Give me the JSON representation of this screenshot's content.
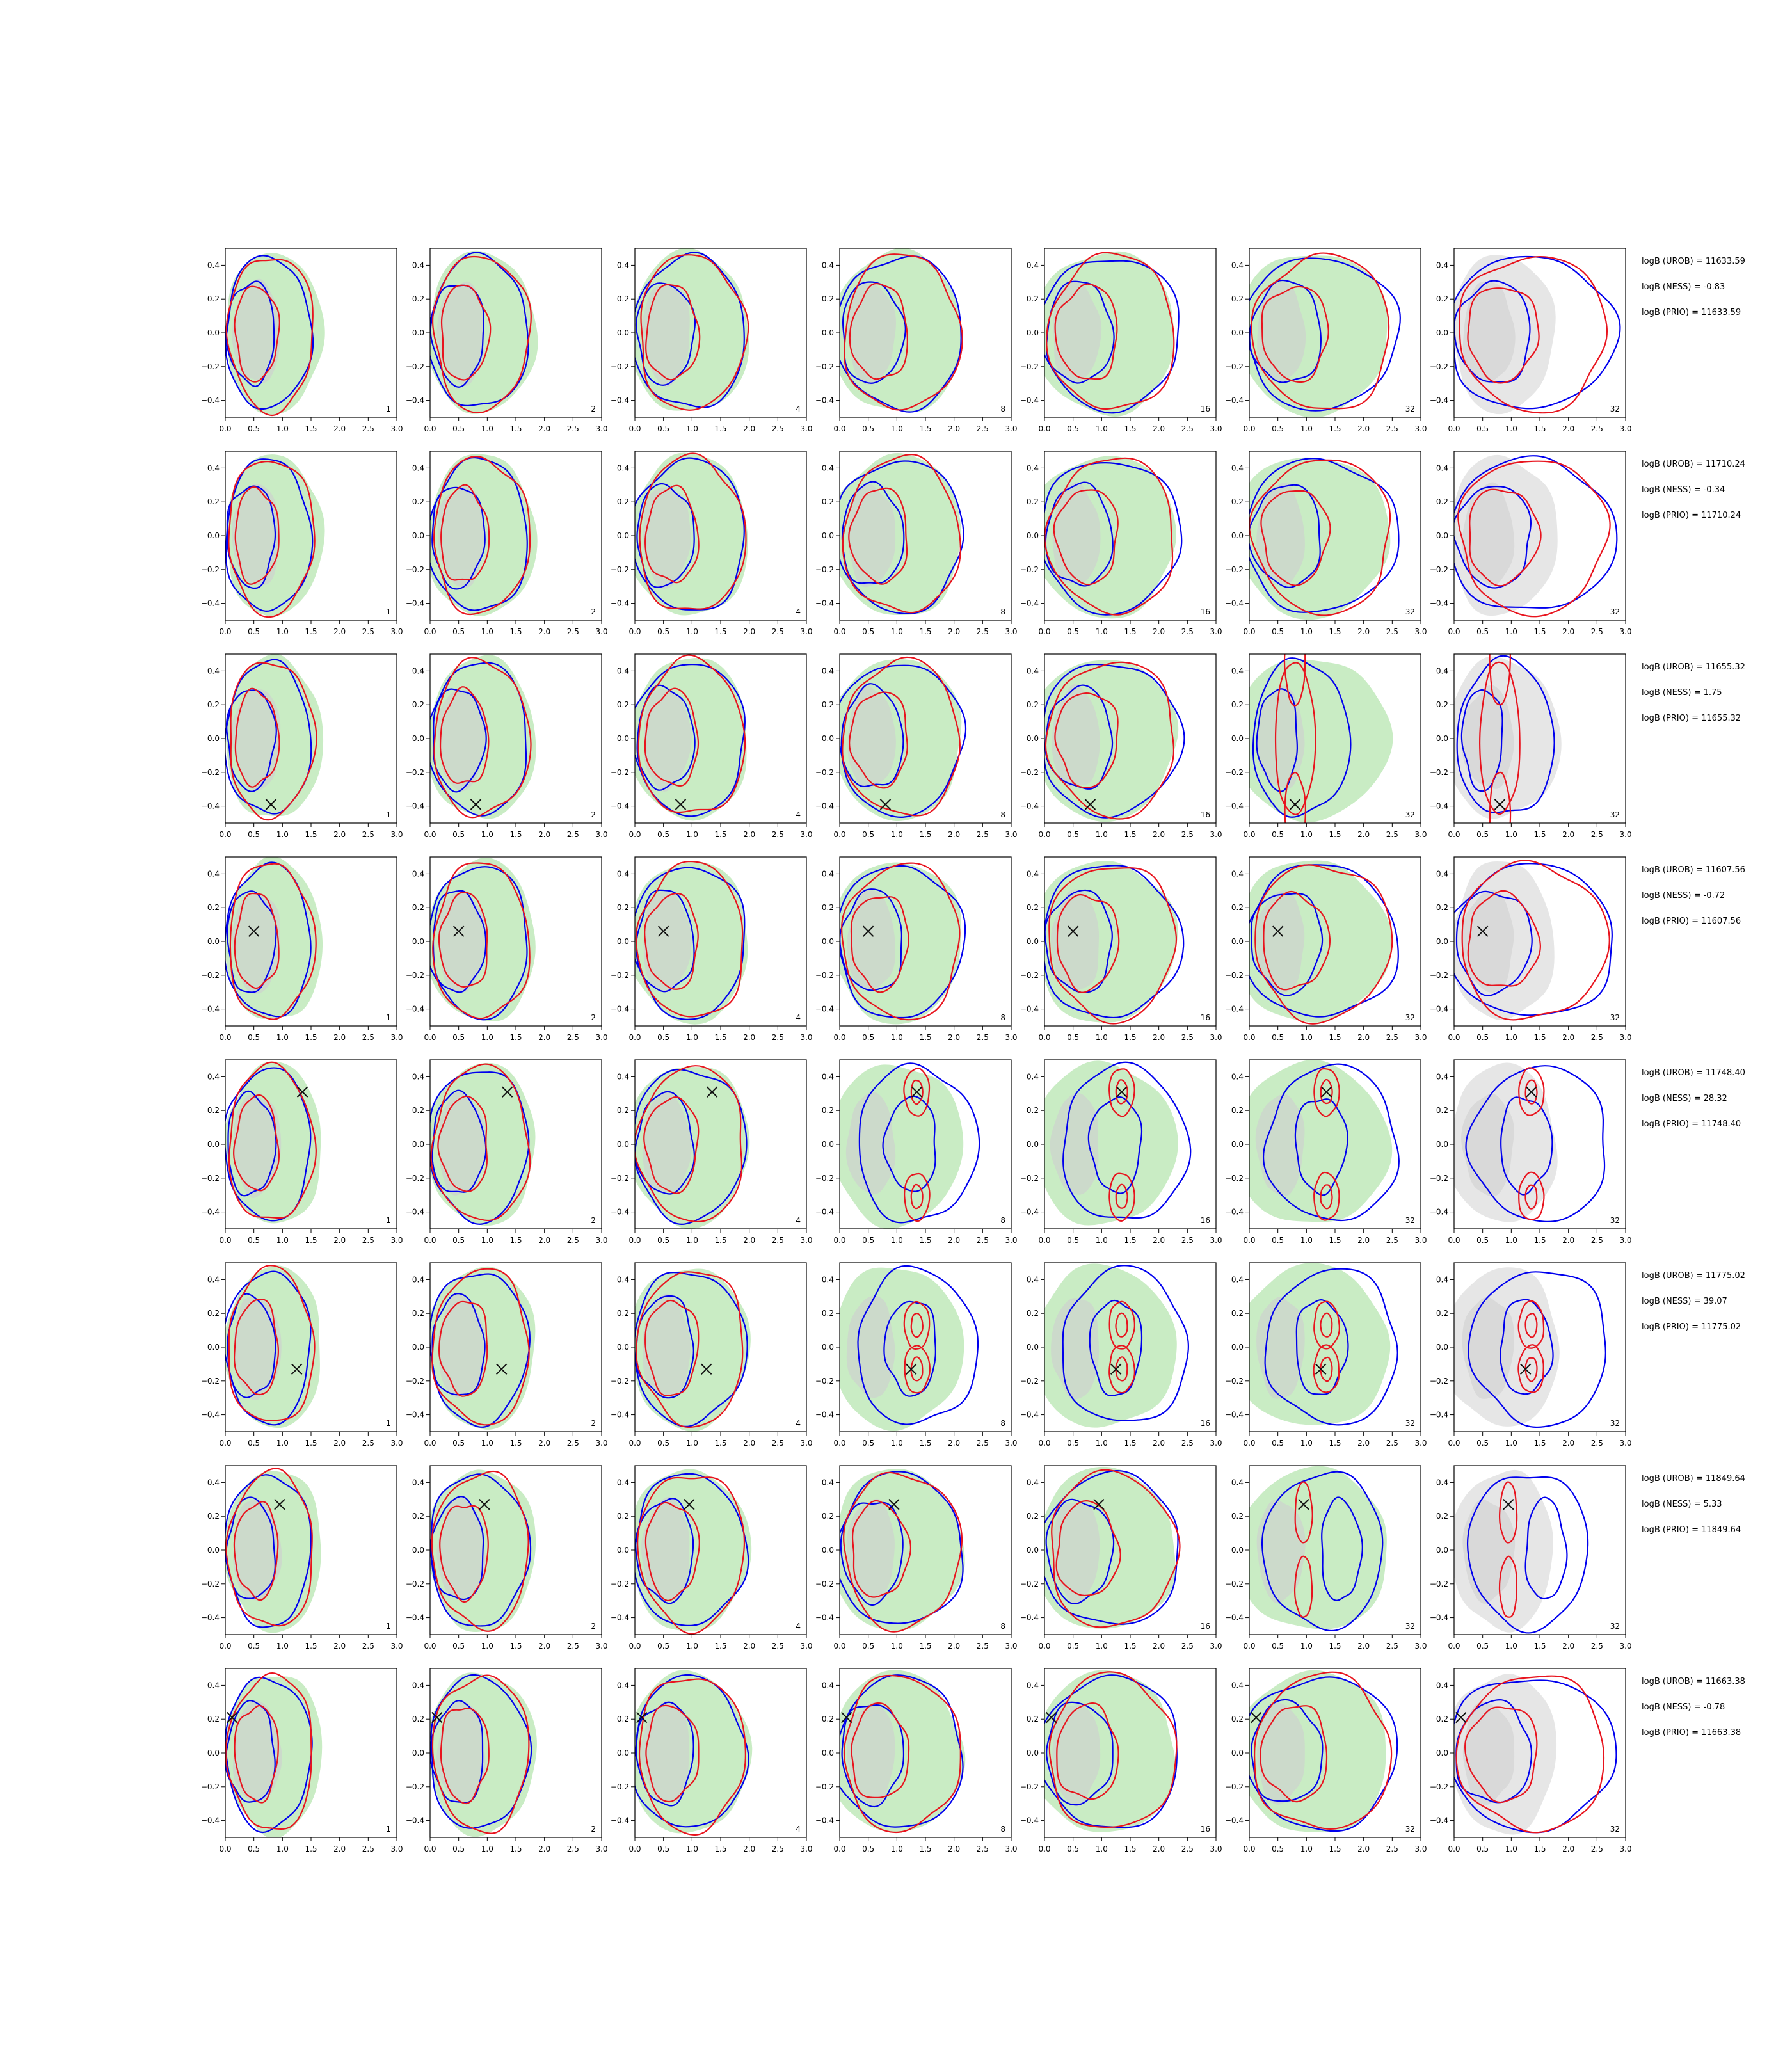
{
  "chart_data": {
    "type": "contour",
    "title": "",
    "layout": {
      "rows": 8,
      "cols": 7
    },
    "xlim": [
      0.0,
      3.0
    ],
    "ylim": [
      -0.5,
      0.5
    ],
    "xticks": [
      "0.0",
      "0.5",
      "1.0",
      "1.5",
      "2.0",
      "2.5",
      "3.0"
    ],
    "yticks": [
      "0.4",
      "0.2",
      "0.0",
      "−0.2",
      "−0.4"
    ],
    "ytick_values": [
      0.4,
      0.2,
      0.0,
      -0.2,
      -0.4
    ],
    "colors": {
      "green_fill": "#c9ecc4",
      "inner_gray": "#cdd6cd",
      "gray_fill": "#e6e6e6",
      "blue": "#0000ee",
      "red": "#e8141e",
      "marker": "#111111"
    },
    "panel_labels": [
      [
        "1",
        "2",
        "4",
        "8",
        "16",
        "32",
        "32"
      ],
      [
        "1",
        "2",
        "4",
        "8",
        "16",
        "32",
        "32"
      ],
      [
        "1",
        "2",
        "4",
        "8",
        "16",
        "32",
        "32"
      ],
      [
        "1",
        "2",
        "4",
        "8",
        "16",
        "32",
        "32"
      ],
      [
        "1",
        "2",
        "4",
        "8",
        "16",
        "32",
        "32"
      ],
      [
        "1",
        "2",
        "4",
        "8",
        "16",
        "32",
        "32"
      ],
      [
        "1",
        "2",
        "4",
        "8",
        "16",
        "32",
        "32"
      ],
      [
        "1",
        "2",
        "4",
        "8",
        "16",
        "32",
        "32"
      ]
    ],
    "markers": [
      null,
      null,
      [
        0.8,
        -0.39
      ],
      [
        0.5,
        0.06
      ],
      [
        1.35,
        0.31
      ],
      [
        1.25,
        -0.13
      ],
      [
        0.95,
        0.27
      ],
      [
        0.12,
        0.21
      ]
    ],
    "rows": [
      {
        "stats": [
          "logB (UROB) = 11633.59",
          "logB (NESS) = -0.83",
          "logB (PRIO) = 11633.59"
        ]
      },
      {
        "stats": [
          "logB (UROB) = 11710.24",
          "logB (NESS) = -0.34",
          "logB (PRIO) = 11710.24"
        ]
      },
      {
        "stats": [
          "logB (UROB) = 11655.32",
          "logB (NESS) = 1.75",
          "logB (PRIO) = 11655.32"
        ]
      },
      {
        "stats": [
          "logB (UROB) = 11607.56",
          "logB (NESS) = -0.72",
          "logB (PRIO) = 11607.56"
        ]
      },
      {
        "stats": [
          "logB (UROB) = 11748.40",
          "logB (NESS) = 28.32",
          "logB (PRIO) = 11748.40"
        ]
      },
      {
        "stats": [
          "logB (UROB) = 11775.02",
          "logB (NESS) = 39.07",
          "logB (PRIO) = 11775.02"
        ]
      },
      {
        "stats": [
          "logB (UROB) = 11849.64",
          "logB (NESS) = 5.33",
          "logB (PRIO) = 11849.64"
        ]
      },
      {
        "stats": [
          "logB (UROB) = 11663.38",
          "logB (NESS) = -0.78",
          "logB (PRIO) = 11663.38"
        ]
      }
    ]
  }
}
